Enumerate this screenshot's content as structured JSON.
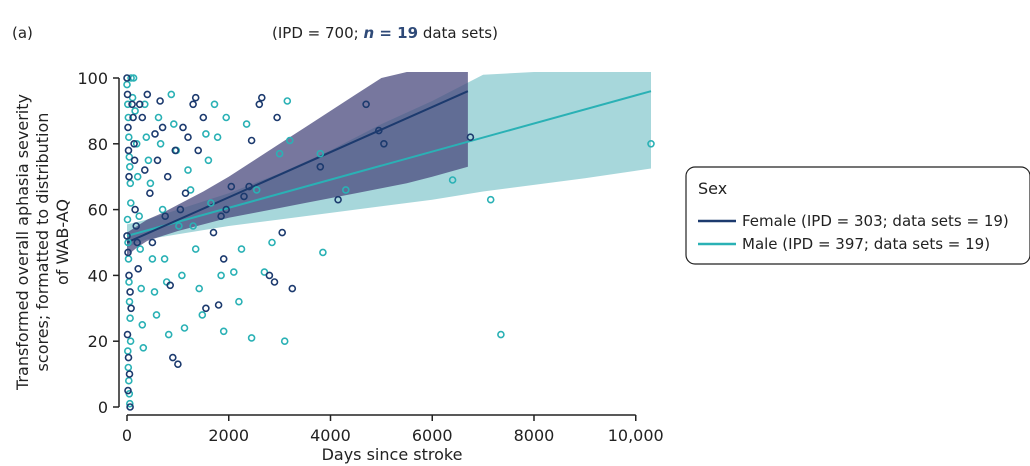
{
  "panel_label": "(a)",
  "subtitle": {
    "prefix": "(IPD = 700; ",
    "n_label": "n",
    "eq": " = ",
    "n_value": "19",
    "suffix": " data sets)"
  },
  "legend": {
    "title": "Sex",
    "items": [
      {
        "label": "Female (IPD = 303; data sets = 19)",
        "color": "#1c3a6e"
      },
      {
        "label": "Male (IPD = 397; data sets = 19)",
        "color": "#2ab1b5"
      }
    ]
  },
  "chart_data": {
    "type": "scatter",
    "xlabel": "Days since stroke",
    "ylabel_lines": [
      "Transformed overall aphasia severity",
      "scores; formatted to distribution",
      "of WAB-AQ"
    ],
    "xlim": [
      0,
      10500
    ],
    "ylim": [
      0,
      100
    ],
    "x_ticks": [
      0,
      2000,
      4000,
      6000,
      8000,
      10000
    ],
    "x_tick_labels": [
      "0",
      "2000",
      "4000",
      "6000",
      "8000",
      "10,000"
    ],
    "y_ticks": [
      0,
      20,
      40,
      60,
      80,
      100
    ],
    "y_tick_labels": [
      "0",
      "20",
      "40",
      "60",
      "80",
      "100"
    ],
    "grid": false,
    "series": [
      {
        "name": "Female (IPD = 303; data sets = 19)",
        "color": "#1c3a6e",
        "band_color": "#4a4a7e",
        "fit": {
          "x": [
            0,
            6700
          ],
          "y": [
            50,
            96
          ]
        },
        "ci": {
          "x": [
            0,
            200,
            400,
            700,
            1000,
            1500,
            2000,
            2500,
            3000,
            3500,
            4000,
            4500,
            5000,
            5500,
            6000,
            6700
          ],
          "lower": [
            46,
            48.5,
            50.5,
            52,
            53.5,
            55.5,
            57.5,
            59,
            60.5,
            62,
            63.5,
            65,
            66.5,
            68,
            70,
            73
          ],
          "upper": [
            53,
            55,
            57,
            59,
            61.5,
            65.5,
            70,
            75,
            80,
            85,
            90,
            95,
            100,
            102,
            102,
            102
          ]
        },
        "points": [
          {
            "x": 0,
            "y": 100
          },
          {
            "x": 10,
            "y": 95
          },
          {
            "x": 20,
            "y": 85
          },
          {
            "x": 30,
            "y": 78
          },
          {
            "x": 40,
            "y": 70
          },
          {
            "x": 0,
            "y": 52
          },
          {
            "x": 20,
            "y": 47
          },
          {
            "x": 40,
            "y": 40
          },
          {
            "x": 60,
            "y": 35
          },
          {
            "x": 80,
            "y": 30
          },
          {
            "x": 10,
            "y": 22
          },
          {
            "x": 30,
            "y": 15
          },
          {
            "x": 50,
            "y": 10
          },
          {
            "x": 20,
            "y": 5
          },
          {
            "x": 60,
            "y": 0
          },
          {
            "x": 100,
            "y": 92
          },
          {
            "x": 120,
            "y": 88
          },
          {
            "x": 140,
            "y": 80
          },
          {
            "x": 150,
            "y": 75
          },
          {
            "x": 160,
            "y": 60
          },
          {
            "x": 180,
            "y": 55
          },
          {
            "x": 200,
            "y": 50
          },
          {
            "x": 220,
            "y": 42
          },
          {
            "x": 250,
            "y": 92
          },
          {
            "x": 300,
            "y": 88
          },
          {
            "x": 350,
            "y": 72
          },
          {
            "x": 400,
            "y": 95
          },
          {
            "x": 450,
            "y": 65
          },
          {
            "x": 500,
            "y": 50
          },
          {
            "x": 550,
            "y": 83
          },
          {
            "x": 600,
            "y": 75
          },
          {
            "x": 650,
            "y": 93
          },
          {
            "x": 700,
            "y": 85
          },
          {
            "x": 750,
            "y": 58
          },
          {
            "x": 800,
            "y": 70
          },
          {
            "x": 850,
            "y": 37
          },
          {
            "x": 900,
            "y": 15
          },
          {
            "x": 950,
            "y": 78
          },
          {
            "x": 1000,
            "y": 13
          },
          {
            "x": 1050,
            "y": 60
          },
          {
            "x": 1100,
            "y": 85
          },
          {
            "x": 1150,
            "y": 65
          },
          {
            "x": 1200,
            "y": 82
          },
          {
            "x": 1300,
            "y": 92
          },
          {
            "x": 1350,
            "y": 94
          },
          {
            "x": 1400,
            "y": 78
          },
          {
            "x": 1500,
            "y": 88
          },
          {
            "x": 1550,
            "y": 30
          },
          {
            "x": 1700,
            "y": 53
          },
          {
            "x": 1800,
            "y": 31
          },
          {
            "x": 1850,
            "y": 58
          },
          {
            "x": 1900,
            "y": 45
          },
          {
            "x": 1950,
            "y": 60
          },
          {
            "x": 2050,
            "y": 67
          },
          {
            "x": 2300,
            "y": 64
          },
          {
            "x": 2400,
            "y": 67
          },
          {
            "x": 2450,
            "y": 81
          },
          {
            "x": 2600,
            "y": 92
          },
          {
            "x": 2650,
            "y": 94
          },
          {
            "x": 2800,
            "y": 40
          },
          {
            "x": 2900,
            "y": 38
          },
          {
            "x": 2950,
            "y": 88
          },
          {
            "x": 3050,
            "y": 53
          },
          {
            "x": 3250,
            "y": 36
          },
          {
            "x": 3800,
            "y": 73
          },
          {
            "x": 4150,
            "y": 63
          },
          {
            "x": 4700,
            "y": 92
          },
          {
            "x": 4950,
            "y": 84
          },
          {
            "x": 5050,
            "y": 80
          },
          {
            "x": 6750,
            "y": 82
          }
        ]
      },
      {
        "name": "Male (IPD = 397; data sets = 19)",
        "color": "#2ab1b5",
        "band_color": "#6cbcc3",
        "fit": {
          "x": [
            0,
            10300
          ],
          "y": [
            52,
            96
          ]
        },
        "ci": {
          "x": [
            0,
            400,
            1000,
            2000,
            3000,
            4000,
            5000,
            6000,
            7000,
            8000,
            9000,
            10300
          ],
          "lower": [
            48.5,
            51,
            52.5,
            55,
            57,
            59,
            61,
            63,
            65.5,
            67.5,
            69.5,
            72.5
          ],
          "upper": [
            55.5,
            57,
            60,
            65,
            71,
            78,
            86,
            93,
            101,
            102,
            102,
            102
          ]
        },
        "points": [
          {
            "x": 0,
            "y": 98
          },
          {
            "x": 15,
            "y": 92
          },
          {
            "x": 25,
            "y": 88
          },
          {
            "x": 35,
            "y": 82
          },
          {
            "x": 45,
            "y": 76
          },
          {
            "x": 55,
            "y": 73
          },
          {
            "x": 65,
            "y": 68
          },
          {
            "x": 75,
            "y": 62
          },
          {
            "x": 10,
            "y": 57
          },
          {
            "x": 20,
            "y": 50
          },
          {
            "x": 30,
            "y": 45
          },
          {
            "x": 40,
            "y": 38
          },
          {
            "x": 50,
            "y": 32
          },
          {
            "x": 60,
            "y": 27
          },
          {
            "x": 70,
            "y": 20
          },
          {
            "x": 15,
            "y": 17
          },
          {
            "x": 25,
            "y": 12
          },
          {
            "x": 35,
            "y": 8
          },
          {
            "x": 45,
            "y": 4
          },
          {
            "x": 55,
            "y": 1
          },
          {
            "x": 80,
            "y": 100
          },
          {
            "x": 130,
            "y": 100
          },
          {
            "x": 110,
            "y": 94
          },
          {
            "x": 160,
            "y": 90
          },
          {
            "x": 190,
            "y": 80
          },
          {
            "x": 210,
            "y": 70
          },
          {
            "x": 240,
            "y": 58
          },
          {
            "x": 260,
            "y": 48
          },
          {
            "x": 280,
            "y": 36
          },
          {
            "x": 300,
            "y": 25
          },
          {
            "x": 320,
            "y": 18
          },
          {
            "x": 350,
            "y": 92
          },
          {
            "x": 380,
            "y": 82
          },
          {
            "x": 420,
            "y": 75
          },
          {
            "x": 460,
            "y": 68
          },
          {
            "x": 500,
            "y": 45
          },
          {
            "x": 540,
            "y": 35
          },
          {
            "x": 580,
            "y": 28
          },
          {
            "x": 620,
            "y": 88
          },
          {
            "x": 660,
            "y": 80
          },
          {
            "x": 700,
            "y": 60
          },
          {
            "x": 740,
            "y": 45
          },
          {
            "x": 780,
            "y": 38
          },
          {
            "x": 820,
            "y": 22
          },
          {
            "x": 870,
            "y": 95
          },
          {
            "x": 920,
            "y": 86
          },
          {
            "x": 970,
            "y": 78
          },
          {
            "x": 1020,
            "y": 55
          },
          {
            "x": 1080,
            "y": 40
          },
          {
            "x": 1130,
            "y": 24
          },
          {
            "x": 1200,
            "y": 72
          },
          {
            "x": 1250,
            "y": 66
          },
          {
            "x": 1300,
            "y": 55
          },
          {
            "x": 1350,
            "y": 48
          },
          {
            "x": 1420,
            "y": 36
          },
          {
            "x": 1480,
            "y": 28
          },
          {
            "x": 1550,
            "y": 83
          },
          {
            "x": 1600,
            "y": 75
          },
          {
            "x": 1650,
            "y": 62
          },
          {
            "x": 1720,
            "y": 92
          },
          {
            "x": 1780,
            "y": 82
          },
          {
            "x": 1850,
            "y": 40
          },
          {
            "x": 1900,
            "y": 23
          },
          {
            "x": 1950,
            "y": 88
          },
          {
            "x": 2100,
            "y": 41
          },
          {
            "x": 2200,
            "y": 32
          },
          {
            "x": 2250,
            "y": 48
          },
          {
            "x": 2350,
            "y": 86
          },
          {
            "x": 2450,
            "y": 21
          },
          {
            "x": 2550,
            "y": 66
          },
          {
            "x": 2700,
            "y": 41
          },
          {
            "x": 2850,
            "y": 50
          },
          {
            "x": 3000,
            "y": 77
          },
          {
            "x": 3100,
            "y": 20
          },
          {
            "x": 3150,
            "y": 93
          },
          {
            "x": 3200,
            "y": 81
          },
          {
            "x": 3800,
            "y": 77
          },
          {
            "x": 3850,
            "y": 47
          },
          {
            "x": 4300,
            "y": 66
          },
          {
            "x": 6400,
            "y": 69
          },
          {
            "x": 7150,
            "y": 63
          },
          {
            "x": 7350,
            "y": 22
          },
          {
            "x": 10300,
            "y": 80
          }
        ]
      }
    ]
  }
}
